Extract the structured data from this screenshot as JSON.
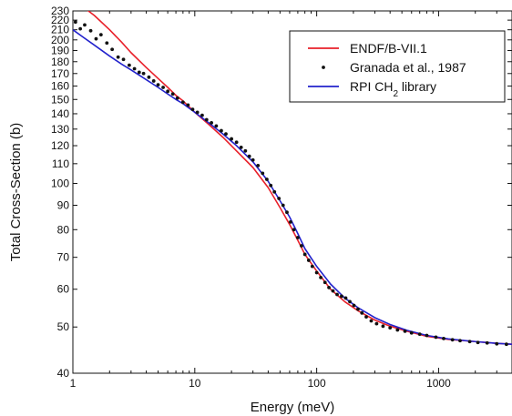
{
  "chart_data": {
    "type": "line",
    "title": "",
    "xlabel": "Energy (meV)",
    "ylabel": "Total Cross-Section (b)",
    "xscale": "log",
    "yscale": "log",
    "xlim": [
      1,
      4000
    ],
    "ylim": [
      40,
      230
    ],
    "grid": false,
    "legend_position": "top-right",
    "x_tick_labels": [
      "1",
      "10",
      "100",
      "1000"
    ],
    "y_tick_labels": [
      "40",
      "50",
      "60",
      "70",
      "80",
      "90",
      "100",
      "110",
      "120",
      "130",
      "140",
      "150",
      "160",
      "170",
      "180",
      "190",
      "200",
      "210",
      "220",
      "230"
    ],
    "series": [
      {
        "name": "ENDF/B-VII.1",
        "style": "line",
        "color": "#e8202a",
        "x": [
          1.0,
          1.2,
          1.5,
          2,
          2.5,
          3,
          4,
          5,
          6,
          7,
          8,
          10,
          13,
          17,
          22,
          30,
          40,
          50,
          60,
          70,
          80,
          100,
          130,
          170,
          220,
          300,
          400,
          550,
          800,
          1200,
          2000,
          3000,
          4000
        ],
        "y": [
          245,
          235,
          225,
          210,
          198,
          188,
          175,
          166,
          159,
          153,
          149,
          141,
          133,
          125,
          117,
          108,
          98,
          89,
          82,
          76,
          71,
          65.5,
          60,
          56.5,
          54,
          51.7,
          50.2,
          49,
          47.8,
          47.1,
          46.6,
          46.2,
          46.0
        ]
      },
      {
        "name": "Granada et al., 1987",
        "style": "scatter",
        "color": "#111111",
        "x": [
          1.05,
          1.15,
          1.25,
          1.4,
          1.55,
          1.7,
          1.9,
          2.1,
          2.35,
          2.6,
          2.9,
          3.2,
          3.5,
          3.8,
          4.2,
          4.6,
          5.0,
          5.5,
          6.0,
          6.6,
          7.2,
          8.0,
          8.8,
          9.6,
          10.5,
          11.5,
          12.5,
          13.7,
          15.0,
          16.5,
          18,
          20,
          22,
          24,
          26,
          28,
          30,
          33,
          36,
          39,
          42,
          45,
          49,
          53,
          57,
          61,
          65,
          70,
          75,
          80,
          86,
          92,
          100,
          108,
          117,
          126,
          136,
          147,
          160,
          173,
          187,
          202,
          218,
          235,
          255,
          280,
          310,
          350,
          400,
          460,
          530,
          600,
          700,
          800,
          950,
          1100,
          1300,
          1500,
          1800,
          2100,
          2500,
          3000,
          3600
        ],
        "y": [
          218,
          211,
          215,
          209,
          201,
          205,
          197,
          191,
          184,
          182,
          177,
          174,
          171,
          170,
          167,
          164,
          161,
          159,
          156,
          154,
          151,
          148,
          146,
          143,
          141,
          139,
          136,
          134,
          132,
          129,
          127,
          124,
          122,
          119,
          117,
          114,
          112,
          109,
          105,
          102,
          99,
          96,
          93,
          90,
          87,
          83,
          80,
          77,
          74,
          71,
          69,
          67,
          65,
          63.5,
          62,
          60.5,
          59.5,
          58.5,
          58,
          57.5,
          56.5,
          55.5,
          54.5,
          53.5,
          52.5,
          51.5,
          50.8,
          50.2,
          49.8,
          49.3,
          49.0,
          48.6,
          48.3,
          48.0,
          47.6,
          47.3,
          47.0,
          46.8,
          46.6,
          46.4,
          46.3,
          46.1,
          46.0
        ]
      },
      {
        "name": "RPI CH2 library",
        "style": "line",
        "color": "#2222cc",
        "x": [
          1.0,
          1.2,
          1.5,
          2,
          2.5,
          3,
          4,
          5,
          6,
          7,
          8,
          10,
          13,
          17,
          22,
          30,
          40,
          50,
          60,
          70,
          80,
          100,
          130,
          170,
          220,
          300,
          400,
          550,
          800,
          1200,
          2000,
          3000,
          4000
        ],
        "y": [
          210,
          203,
          195,
          185,
          178,
          173,
          165,
          159,
          154,
          150,
          147,
          141,
          134,
          127,
          120,
          111,
          101,
          92,
          85,
          78.5,
          73,
          67,
          61.5,
          57.5,
          54.8,
          52.3,
          50.6,
          49.2,
          48.0,
          47.2,
          46.6,
          46.2,
          46.0
        ]
      }
    ]
  }
}
